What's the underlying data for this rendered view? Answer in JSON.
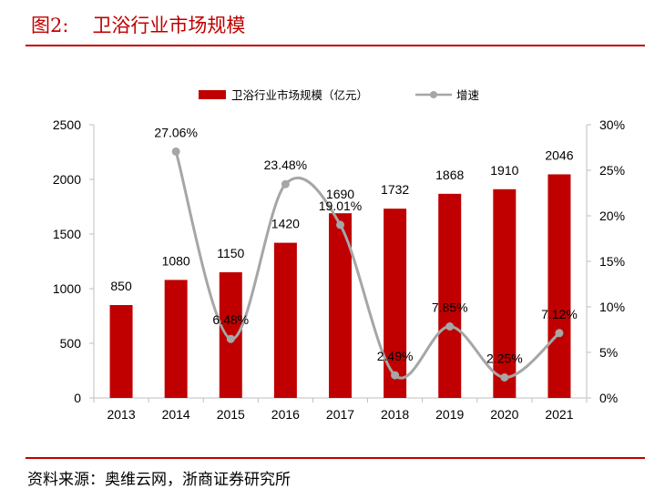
{
  "figure": {
    "label": "图2:",
    "title": "卫浴行业市场规模",
    "source": "资料来源：奥维云网，浙商证券研究所"
  },
  "colors": {
    "accent": "#c00000",
    "bar": "#c00000",
    "line": "#a6a6a6"
  },
  "chart_data": {
    "type": "bar",
    "categories": [
      "2013",
      "2014",
      "2015",
      "2016",
      "2017",
      "2018",
      "2019",
      "2020",
      "2021"
    ],
    "series": [
      {
        "name": "卫浴行业市场规模（亿元）",
        "type": "bar",
        "axis": "left",
        "values": [
          850,
          1080,
          1150,
          1420,
          1690,
          1732,
          1868,
          1910,
          2046
        ],
        "labels": [
          "850",
          "1080",
          "1150",
          "1420",
          "1690",
          "1732",
          "1868",
          "1910",
          "2046"
        ]
      },
      {
        "name": "增速",
        "type": "line",
        "axis": "right",
        "values": [
          null,
          27.06,
          6.48,
          23.48,
          19.01,
          2.49,
          7.85,
          2.25,
          7.12
        ],
        "labels": [
          "",
          "27.06%",
          "6.48%",
          "23.48%",
          "19.01%",
          "2.49%",
          "7.85%",
          "2.25%",
          "7.12%"
        ]
      }
    ],
    "y_left": {
      "range": [
        0,
        2500
      ],
      "ticks": [
        "0",
        "500",
        "1000",
        "1500",
        "2000",
        "2500"
      ]
    },
    "y_right": {
      "range": [
        0,
        30
      ],
      "ticks": [
        "0%",
        "5%",
        "10%",
        "15%",
        "20%",
        "25%",
        "30%"
      ]
    },
    "legend": "top",
    "grid": false
  }
}
